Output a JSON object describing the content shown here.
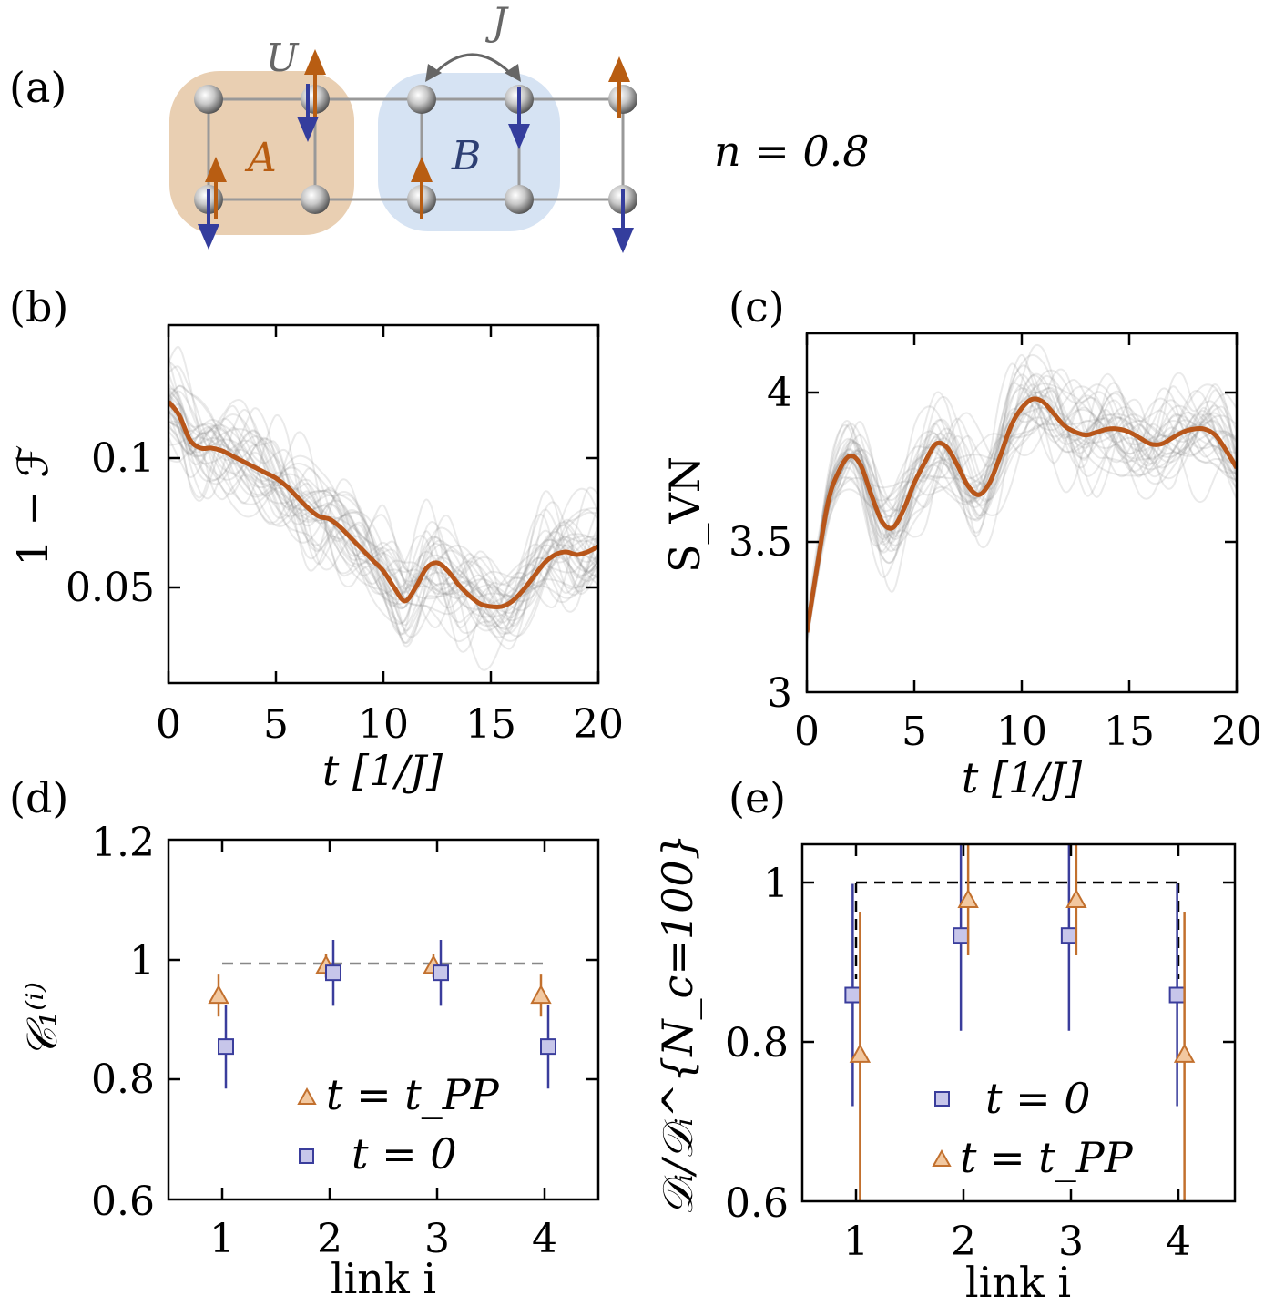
{
  "panel_labels": {
    "a": "(a)",
    "b": "(b)",
    "c": "(c)",
    "d": "(d)",
    "e": "(e)"
  },
  "schematic": {
    "interaction_label": "U",
    "hopping_label": "J",
    "region_A_label": "A",
    "region_B_label": "B",
    "density_label": "n = 0.8",
    "colors": {
      "region_A": "#e9cfb2",
      "region_B": "#d6e3f3",
      "up_arrow": "#b85d12",
      "down_arrow": "#343d9d",
      "bonds": "#999999"
    }
  },
  "colors": {
    "mean_curve": "#b8561a",
    "trajectories": "#888888",
    "triangle_fill": "#f2c8a0",
    "triangle_edge": "#c2702e",
    "square_fill": "#c7c6ea",
    "square_edge": "#3a3d9c",
    "dashed_d": "#888888",
    "dashed_e": "#000000"
  },
  "chart_data": [
    {
      "id": "b",
      "type": "line",
      "xlabel": "t [1/J]",
      "ylabel": "1 − ℱ",
      "xlim": [
        0,
        20
      ],
      "ylim": [
        0.013,
        0.144
      ],
      "xticks": [
        "0",
        "5",
        "10",
        "15",
        "20"
      ],
      "yticks": [
        "0.05",
        "0.1"
      ],
      "grid": false,
      "series": [
        {
          "role": "mean",
          "x": [
            0,
            0.5,
            1,
            1.5,
            2,
            2.5,
            3,
            3.5,
            4,
            4.5,
            5,
            5.5,
            6,
            6.5,
            7,
            7.5,
            8,
            8.5,
            9,
            9.5,
            10,
            10.5,
            11,
            11.5,
            12,
            12.5,
            13,
            13.5,
            14,
            14.5,
            15,
            15.5,
            16,
            16.5,
            17,
            17.5,
            18,
            18.5,
            19,
            19.5,
            20
          ],
          "y": [
            0.116,
            0.111,
            0.102,
            0.099,
            0.099,
            0.098,
            0.096,
            0.094,
            0.092,
            0.09,
            0.088,
            0.085,
            0.081,
            0.077,
            0.074,
            0.073,
            0.07,
            0.066,
            0.062,
            0.058,
            0.054,
            0.048,
            0.043,
            0.048,
            0.055,
            0.057,
            0.054,
            0.049,
            0.045,
            0.042,
            0.041,
            0.041,
            0.043,
            0.047,
            0.052,
            0.057,
            0.06,
            0.061,
            0.06,
            0.061,
            0.063
          ]
        }
      ]
    },
    {
      "id": "c",
      "type": "line",
      "xlabel": "t [1/J]",
      "ylabel": "S_VN",
      "xlim": [
        0,
        20
      ],
      "ylim": [
        3.0,
        4.2
      ],
      "xticks": [
        "0",
        "5",
        "10",
        "15",
        "20"
      ],
      "yticks": [
        "3",
        "3.5",
        "4"
      ],
      "grid": false,
      "series": [
        {
          "role": "mean",
          "x": [
            0,
            0.5,
            1,
            1.5,
            2,
            2.5,
            3,
            3.5,
            4,
            4.5,
            5,
            5.5,
            6,
            6.5,
            7,
            7.5,
            8,
            8.5,
            9,
            9.5,
            10,
            10.5,
            11,
            11.5,
            12,
            12.5,
            13,
            13.5,
            14,
            14.5,
            15,
            15.5,
            16,
            16.5,
            17,
            17.5,
            18,
            18.5,
            19,
            19.5,
            20
          ],
          "y": [
            3.2,
            3.43,
            3.64,
            3.74,
            3.79,
            3.76,
            3.66,
            3.57,
            3.55,
            3.61,
            3.7,
            3.77,
            3.83,
            3.82,
            3.76,
            3.69,
            3.66,
            3.7,
            3.79,
            3.89,
            3.95,
            3.98,
            3.97,
            3.93,
            3.89,
            3.87,
            3.86,
            3.87,
            3.88,
            3.88,
            3.87,
            3.85,
            3.83,
            3.83,
            3.85,
            3.87,
            3.88,
            3.88,
            3.86,
            3.81,
            3.75
          ]
        }
      ]
    },
    {
      "id": "d",
      "type": "scatter",
      "xlabel": "link i",
      "ylabel": "𝒞₁⁽ⁱ⁾",
      "xlim": [
        0.5,
        4.5
      ],
      "ylim": [
        0.6,
        1.2
      ],
      "xticks": [
        "1",
        "2",
        "3",
        "4"
      ],
      "yticks": [
        "0.6",
        "0.8",
        "1",
        "1.2"
      ],
      "reference_line": {
        "y": 0.99,
        "x": [
          1,
          4
        ],
        "style": "dashed"
      },
      "legend": {
        "position": "bottom-center",
        "entries": [
          "t = t_PP",
          "t = 0"
        ]
      },
      "series": [
        {
          "name": "t = t_PP",
          "marker": "triangle",
          "x": [
            1,
            2,
            3,
            4
          ],
          "y": [
            0.94,
            0.99,
            0.99,
            0.94
          ],
          "yerr": [
            [
              0.035,
              0.02,
              0.02,
              0.035
            ],
            [
              0.035,
              0.02,
              0.02,
              0.035
            ]
          ]
        },
        {
          "name": "t = 0",
          "marker": "square",
          "x": [
            1,
            2,
            3,
            4
          ],
          "y": [
            0.855,
            0.978,
            0.978,
            0.855
          ],
          "yerr": [
            [
              0.07,
              0.055,
              0.055,
              0.07
            ],
            [
              0.07,
              0.055,
              0.055,
              0.07
            ]
          ]
        }
      ]
    },
    {
      "id": "e",
      "type": "scatter",
      "xlabel": "link i",
      "ylabel": "𝒟ᵢ/𝒟ᵢ^{N_c=100}",
      "xlim": [
        0.5,
        4.5
      ],
      "ylim": [
        0.6,
        1.05
      ],
      "xticks": [
        "1",
        "2",
        "3",
        "4"
      ],
      "yticks": [
        "0.6",
        "0.8",
        "1"
      ],
      "reference_line": {
        "y": 1.0,
        "x": [
          1,
          4
        ],
        "style": "dashed"
      },
      "legend": {
        "position": "bottom-center",
        "entries": [
          "t = 0",
          "t = t_PP"
        ]
      },
      "series": [
        {
          "name": "t = 0",
          "marker": "square",
          "x": [
            1,
            2,
            3,
            4
          ],
          "y": [
            0.86,
            0.935,
            0.935,
            0.86
          ],
          "yerr": [
            [
              0.14,
              0.12,
              0.12,
              0.14
            ],
            [
              0.14,
              0.12,
              0.12,
              0.14
            ]
          ]
        },
        {
          "name": "t = t_PP",
          "marker": "triangle",
          "x": [
            1,
            2,
            3,
            4
          ],
          "y": [
            0.785,
            0.98,
            0.98,
            0.785
          ],
          "yerr": [
            [
              0.19,
              0.07,
              0.07,
              0.19
            ],
            [
              0.18,
              0.07,
              0.07,
              0.18
            ]
          ]
        }
      ]
    }
  ]
}
